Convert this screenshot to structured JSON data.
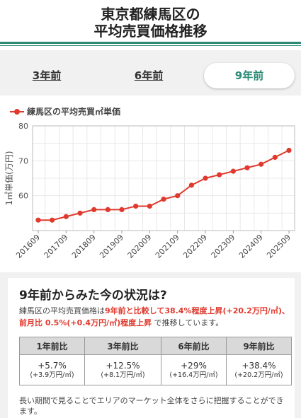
{
  "header": {
    "title_line1": "東京都練馬区の",
    "title_line2": "平均売買価格推移"
  },
  "tabs": [
    {
      "label": "3年前",
      "active": false
    },
    {
      "label": "6年前",
      "active": false
    },
    {
      "label": "9年前",
      "active": true
    }
  ],
  "chart_data": {
    "type": "line",
    "legend": "練馬区の平均売買㎡単価",
    "ylabel": "1㎡単価(万円)",
    "ylim": [
      50,
      80
    ],
    "yticks": [
      60,
      70,
      80
    ],
    "x_ticks": [
      "201609",
      "201709",
      "201809",
      "201909",
      "202009",
      "202109",
      "202209",
      "202309",
      "202409",
      "202509"
    ],
    "series": [
      {
        "name": "練馬区の平均売買㎡単価",
        "color": "#e03a2e",
        "x": [
          "201609",
          "201703",
          "201709",
          "201803",
          "201809",
          "201903",
          "201909",
          "202003",
          "202009",
          "202103",
          "202109",
          "202203",
          "202209",
          "202303",
          "202309",
          "202403",
          "202409",
          "202503",
          "202509"
        ],
        "values": [
          53,
          53,
          54,
          55,
          56,
          56,
          56,
          57,
          57,
          59,
          60,
          63,
          65,
          66,
          67,
          68,
          69,
          71,
          73
        ]
      }
    ]
  },
  "status": {
    "title": "9年前からみた今の状況は?",
    "desc_1": "練馬区の平均売買価格は",
    "desc_2": "9年前と比較して38.4%程度上昇(+20.2万円/㎡)、前月比 0.5%(+0.4万円/㎡)程度上昇",
    "desc_3": " で推移しています。",
    "headers": [
      "1年前比",
      "3年前比",
      "6年前比",
      "9年前比"
    ],
    "cells": [
      {
        "pct": "+5.7%",
        "amount": "(+3.9万円/㎡)"
      },
      {
        "pct": "+12.5%",
        "amount": "(+8.1万円/㎡)"
      },
      {
        "pct": "+29%",
        "amount": "(+16.4万円/㎡)"
      },
      {
        "pct": "+38.4%",
        "amount": "(+20.2万円/㎡)"
      }
    ],
    "footnote": "長い期間で見ることでエリアのマーケット全体をさらに把握することができます。"
  }
}
